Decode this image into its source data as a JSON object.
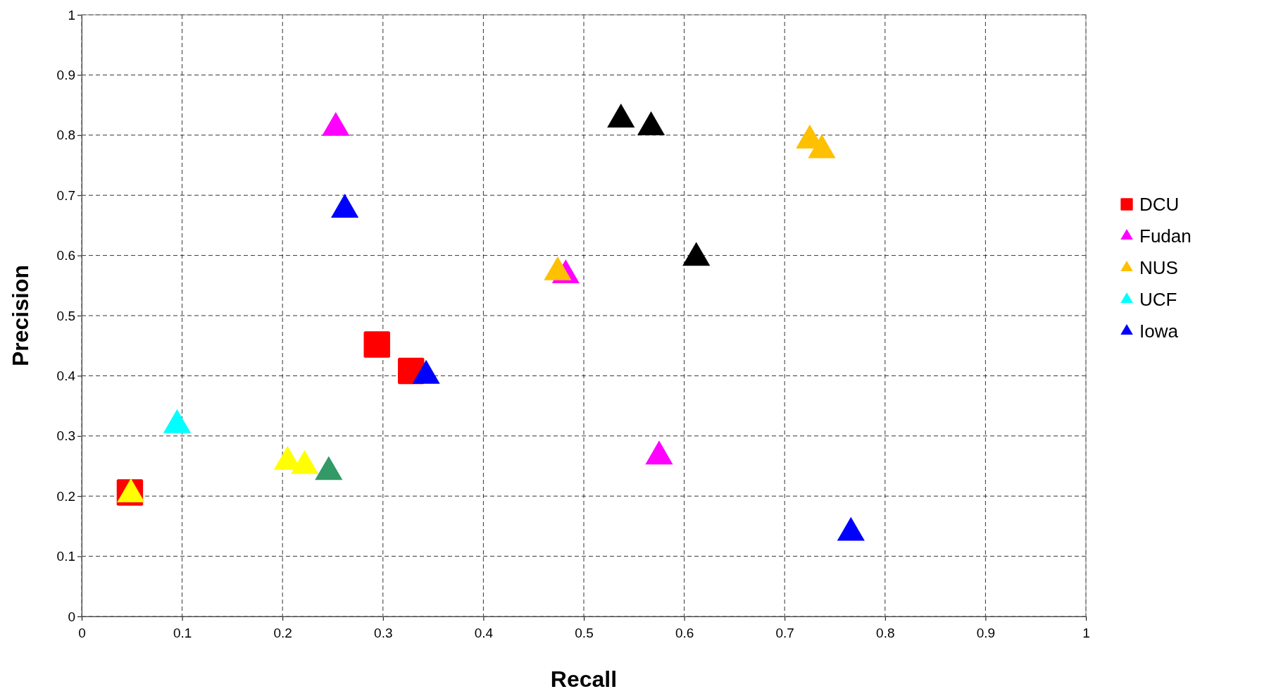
{
  "chart_data": {
    "type": "scatter",
    "xlabel": "Recall",
    "ylabel": "Precision",
    "xlim": [
      0,
      1
    ],
    "ylim": [
      0,
      1
    ],
    "xticks": [
      0,
      0.1,
      0.2,
      0.3,
      0.4,
      0.5,
      0.6,
      0.7,
      0.8,
      0.9,
      1
    ],
    "yticks": [
      0,
      0.1,
      0.2,
      0.3,
      0.4,
      0.5,
      0.6,
      0.7,
      0.8,
      0.9,
      1
    ],
    "grid": true,
    "line_style": "dashed",
    "legend": "right",
    "series": [
      {
        "name": "DCU",
        "color": "#ff0000",
        "marker": "square",
        "x": [
          0.294,
          0.328,
          0.048
        ],
        "values": [
          0.452,
          0.408,
          0.206
        ]
      },
      {
        "name": "Fudan",
        "color": "#ff00ff",
        "marker": "triangle",
        "x": [
          0.253,
          0.482,
          0.575
        ],
        "values": [
          0.812,
          0.567,
          0.266
        ]
      },
      {
        "color": "#000000",
        "marker": "triangle",
        "x": [
          0.537,
          0.567,
          0.612
        ],
        "values": [
          0.826,
          0.813,
          0.596
        ]
      },
      {
        "color": "#339966",
        "marker": "triangle",
        "x": [
          0.246
        ],
        "values": [
          0.24
        ]
      },
      {
        "name": "NUS",
        "color": "#ffc000",
        "marker": "triangle",
        "x": [
          0.725,
          0.737,
          0.474
        ],
        "values": [
          0.791,
          0.775,
          0.572
        ]
      },
      {
        "color": "#ffff00",
        "marker": "triangle",
        "x": [
          0.205,
          0.222,
          0.049
        ],
        "values": [
          0.257,
          0.25,
          0.203
        ]
      },
      {
        "name": "UCF",
        "color": "#00ffff",
        "marker": "triangle",
        "x": [
          0.095
        ],
        "values": [
          0.318
        ]
      },
      {
        "name": "Iowa",
        "color": "#0000ff",
        "marker": "triangle",
        "x": [
          0.262,
          0.343,
          0.766
        ],
        "values": [
          0.676,
          0.4,
          0.139
        ]
      }
    ]
  }
}
